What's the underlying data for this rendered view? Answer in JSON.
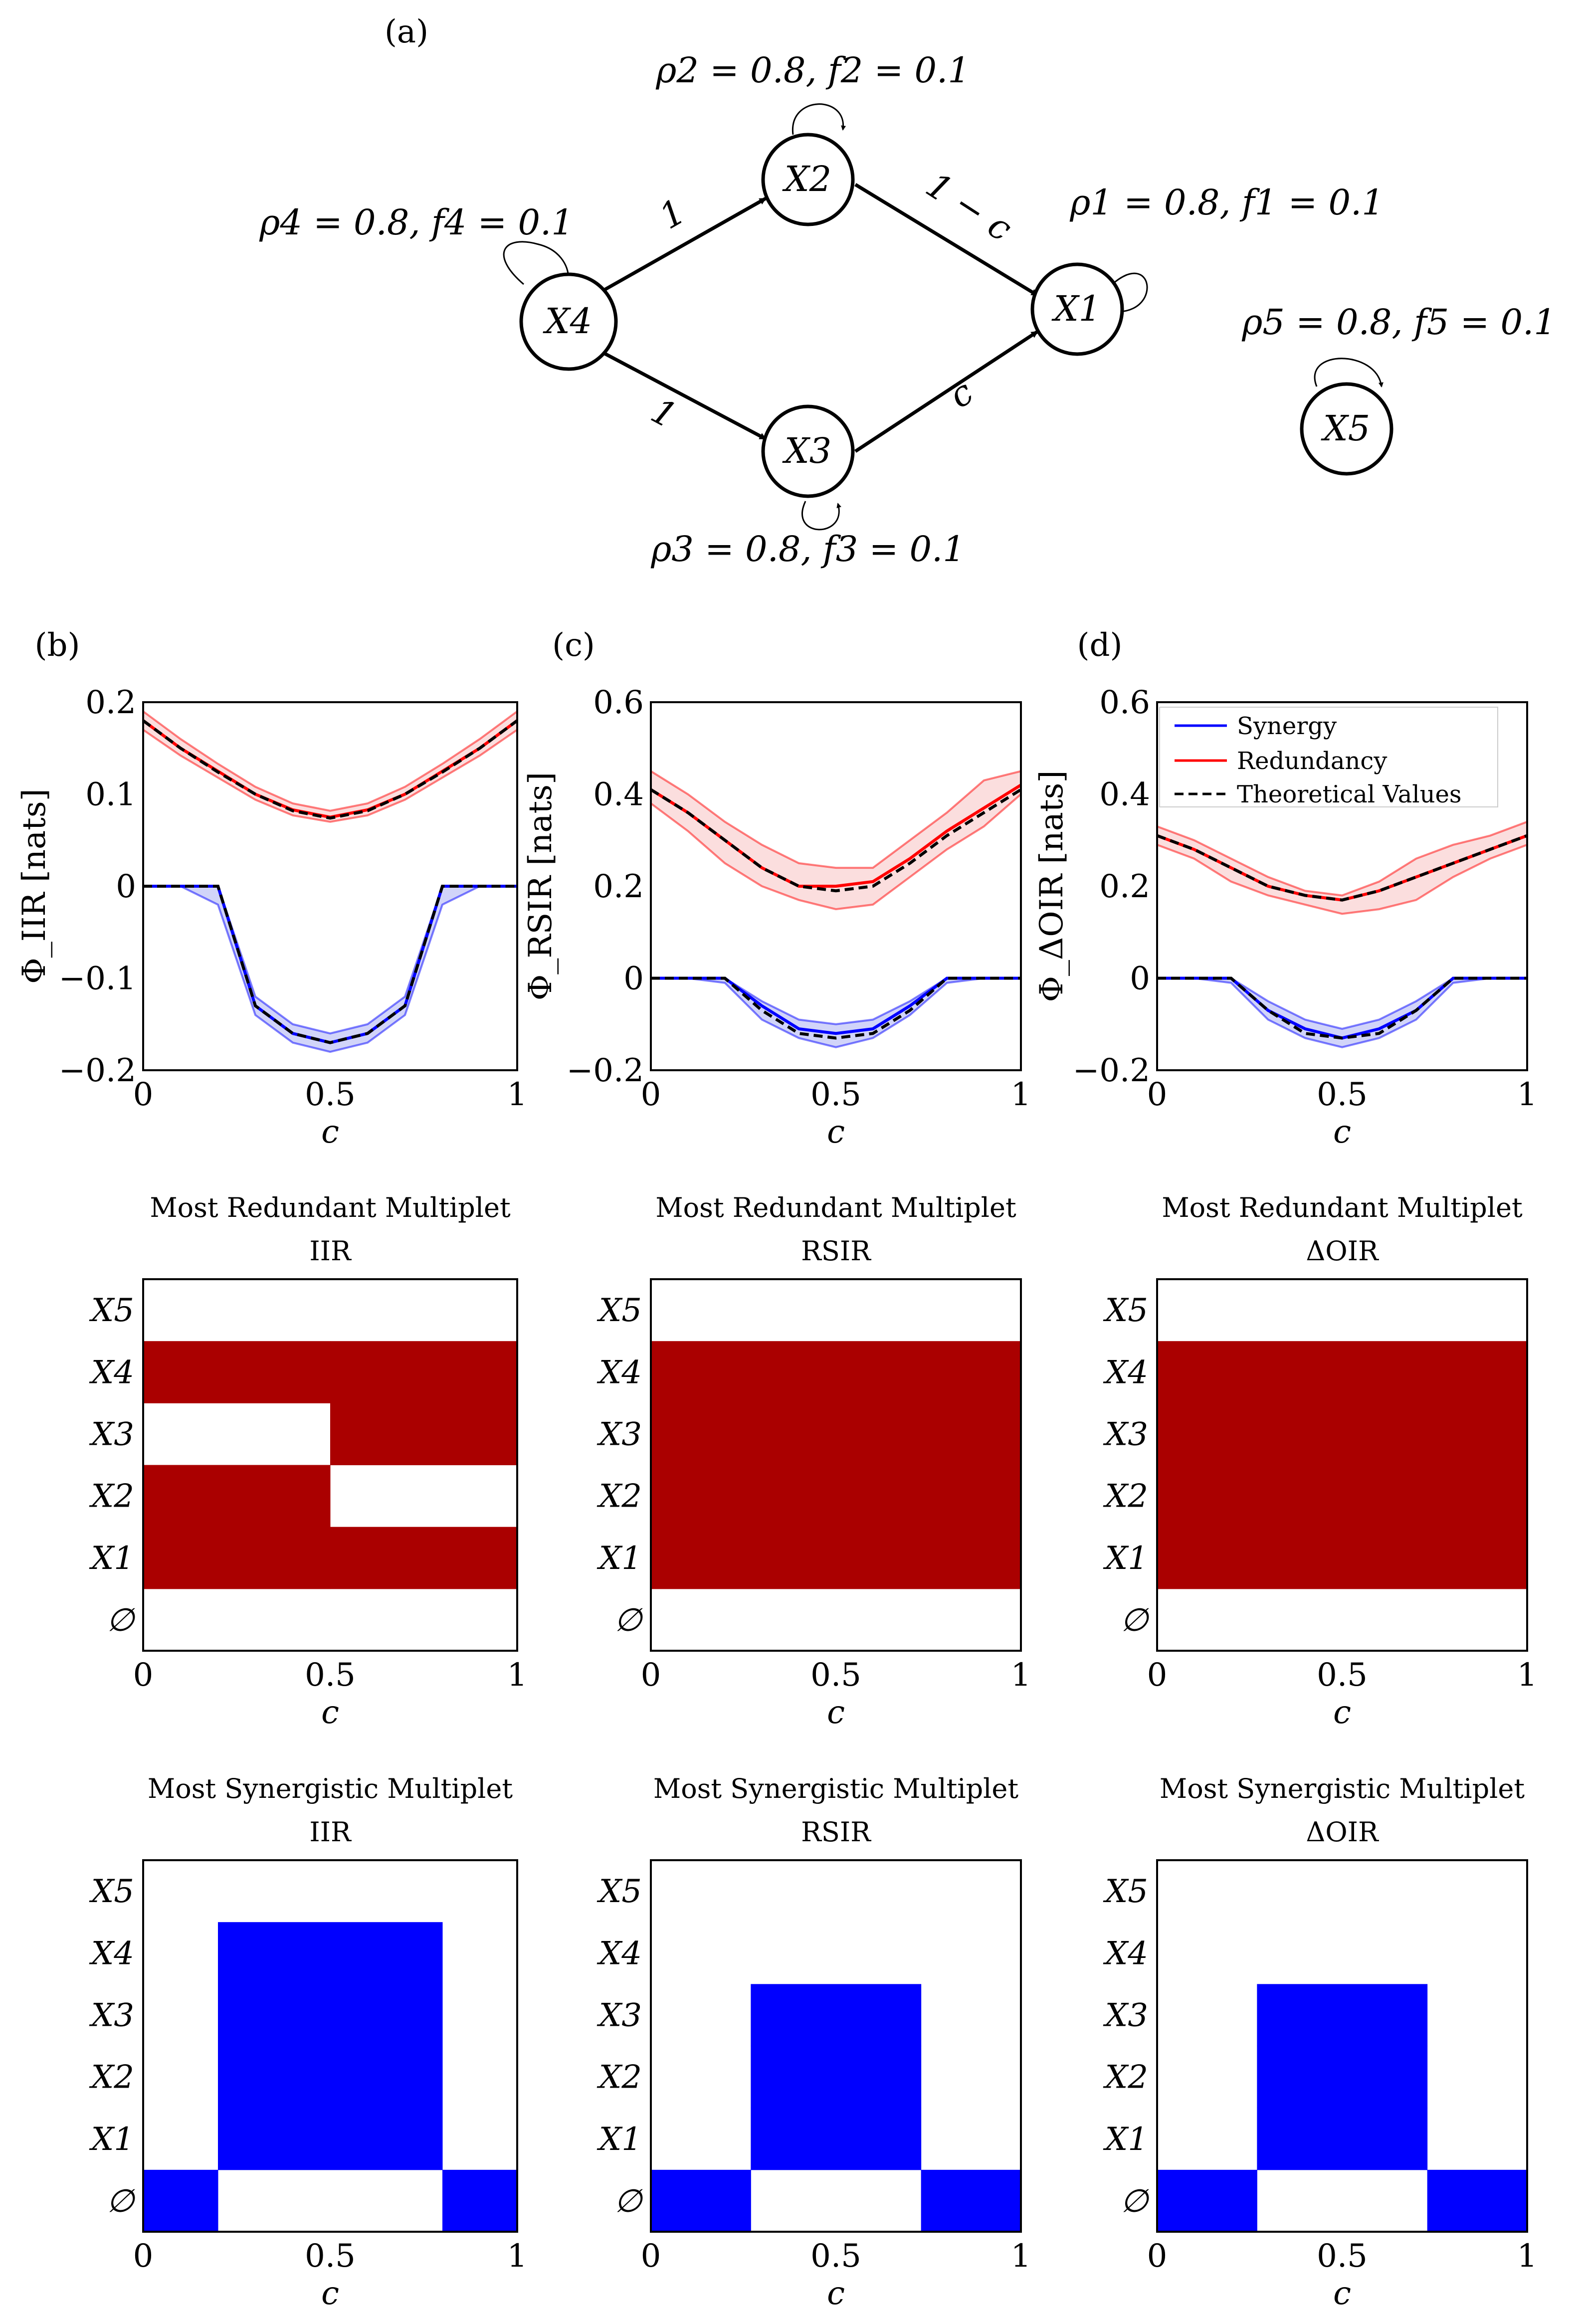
{
  "colors": {
    "synergy": "#0000ff",
    "synergy_band": "#b3b8f5",
    "redundancy": "#ff0000",
    "redundancy_band": "#f8c8c8",
    "redundant_cell": "#aa0000",
    "theory": "#000000"
  },
  "graph": {
    "panel_label": "(a)",
    "nodes": [
      {
        "id": "X1",
        "label": "X1",
        "param": "ρ1 = 0.8, f1 = 0.1"
      },
      {
        "id": "X2",
        "label": "X2",
        "param": "ρ2 = 0.8, f2 = 0.1"
      },
      {
        "id": "X3",
        "label": "X3",
        "param": "ρ3 = 0.8, f3 = 0.1"
      },
      {
        "id": "X4",
        "label": "X4",
        "param": "ρ4 = 0.8, f4 = 0.1"
      },
      {
        "id": "X5",
        "label": "X5",
        "param": "ρ5 = 0.8, f5 = 0.1"
      }
    ],
    "edges": [
      {
        "from": "X4",
        "to": "X2",
        "label": "1"
      },
      {
        "from": "X4",
        "to": "X3",
        "label": "1"
      },
      {
        "from": "X2",
        "to": "X1",
        "label": "1 − c"
      },
      {
        "from": "X3",
        "to": "X1",
        "label": "c"
      }
    ]
  },
  "legend": {
    "synergy": "Synergy",
    "redundancy": "Redundancy",
    "theory": "Theoretical Values"
  },
  "chart_data": [
    {
      "type": "line",
      "panel": "(b)",
      "ylabel": "Φ_IIR [nats]",
      "xlabel": "c",
      "xlim": [
        0,
        1
      ],
      "ylim": [
        -0.2,
        0.2
      ],
      "xticks": [
        "0",
        "0.5",
        "1"
      ],
      "yticks": [
        "0.2",
        "0.1",
        "0",
        "−0.1",
        "−0.2"
      ],
      "x": [
        0,
        0.1,
        0.2,
        0.3,
        0.4,
        0.5,
        0.6,
        0.7,
        0.8,
        0.9,
        1.0
      ],
      "series": [
        {
          "name": "Redundancy",
          "values": [
            0.18,
            0.15,
            0.125,
            0.1,
            0.083,
            0.075,
            0.083,
            0.1,
            0.125,
            0.15,
            0.18
          ],
          "lower": [
            0.17,
            0.142,
            0.118,
            0.094,
            0.077,
            0.07,
            0.077,
            0.094,
            0.118,
            0.142,
            0.17
          ],
          "upper": [
            0.19,
            0.16,
            0.133,
            0.108,
            0.09,
            0.082,
            0.09,
            0.108,
            0.133,
            0.16,
            0.19
          ]
        },
        {
          "name": "Synergy",
          "values": [
            0,
            0,
            0,
            -0.13,
            -0.16,
            -0.17,
            -0.16,
            -0.13,
            0,
            0,
            0
          ],
          "lower": [
            0,
            0,
            -0.02,
            -0.14,
            -0.17,
            -0.18,
            -0.17,
            -0.14,
            -0.02,
            0,
            0
          ],
          "upper": [
            0,
            0,
            0,
            -0.12,
            -0.15,
            -0.16,
            -0.15,
            -0.12,
            0,
            0,
            0
          ]
        },
        {
          "name": "Theoretical Values",
          "values": [
            0.18,
            0.15,
            0.124,
            0.1,
            0.082,
            0.074,
            0.082,
            0.1,
            0.124,
            0.15,
            0.18
          ]
        },
        {
          "name": "Theoretical Synergy",
          "values": [
            0,
            0,
            0,
            -0.13,
            -0.16,
            -0.17,
            -0.16,
            -0.13,
            0,
            0,
            0
          ]
        }
      ]
    },
    {
      "type": "line",
      "panel": "(c)",
      "ylabel": "Φ_RSIR [nats]",
      "xlabel": "c",
      "xlim": [
        0,
        1
      ],
      "ylim": [
        -0.2,
        0.6
      ],
      "xticks": [
        "0",
        "0.5",
        "1"
      ],
      "yticks": [
        "0.6",
        "0.4",
        "0.2",
        "0",
        "−0.2"
      ],
      "x": [
        0,
        0.1,
        0.2,
        0.3,
        0.4,
        0.5,
        0.6,
        0.7,
        0.8,
        0.9,
        1.0
      ],
      "series": [
        {
          "name": "Redundancy",
          "values": [
            0.41,
            0.36,
            0.3,
            0.24,
            0.2,
            0.2,
            0.21,
            0.26,
            0.32,
            0.37,
            0.42
          ],
          "lower": [
            0.38,
            0.32,
            0.25,
            0.2,
            0.17,
            0.15,
            0.16,
            0.22,
            0.28,
            0.33,
            0.4
          ],
          "upper": [
            0.45,
            0.4,
            0.34,
            0.29,
            0.25,
            0.24,
            0.24,
            0.3,
            0.36,
            0.43,
            0.45
          ]
        },
        {
          "name": "Synergy",
          "values": [
            0,
            0,
            0,
            -0.06,
            -0.11,
            -0.12,
            -0.11,
            -0.06,
            0,
            0,
            0
          ],
          "lower": [
            0,
            0,
            -0.01,
            -0.09,
            -0.13,
            -0.15,
            -0.13,
            -0.08,
            -0.01,
            0,
            0
          ],
          "upper": [
            0,
            0,
            0,
            -0.05,
            -0.09,
            -0.1,
            -0.09,
            -0.05,
            0,
            0,
            0
          ]
        },
        {
          "name": "Theoretical Values",
          "values": [
            0.41,
            0.36,
            0.3,
            0.24,
            0.2,
            0.19,
            0.2,
            0.25,
            0.31,
            0.36,
            0.41
          ]
        },
        {
          "name": "Theoretical Synergy",
          "values": [
            0,
            0,
            0,
            -0.07,
            -0.12,
            -0.13,
            -0.12,
            -0.07,
            0,
            0,
            0
          ]
        }
      ]
    },
    {
      "type": "line",
      "panel": "(d)",
      "ylabel": "Φ_ΔOIR [nats]",
      "xlabel": "c",
      "xlim": [
        0,
        1
      ],
      "ylim": [
        -0.2,
        0.6
      ],
      "xticks": [
        "0",
        "0.5",
        "1"
      ],
      "yticks": [
        "0.6",
        "0.4",
        "0.2",
        "0",
        "−0.2"
      ],
      "x": [
        0,
        0.1,
        0.2,
        0.3,
        0.4,
        0.5,
        0.6,
        0.7,
        0.8,
        0.9,
        1.0
      ],
      "series": [
        {
          "name": "Redundancy",
          "values": [
            0.31,
            0.28,
            0.24,
            0.2,
            0.18,
            0.17,
            0.19,
            0.22,
            0.25,
            0.28,
            0.31
          ],
          "lower": [
            0.29,
            0.26,
            0.21,
            0.18,
            0.16,
            0.14,
            0.15,
            0.17,
            0.22,
            0.26,
            0.29
          ],
          "upper": [
            0.33,
            0.3,
            0.26,
            0.22,
            0.19,
            0.18,
            0.21,
            0.26,
            0.29,
            0.31,
            0.34
          ]
        },
        {
          "name": "Synergy",
          "values": [
            0,
            0,
            0,
            -0.07,
            -0.11,
            -0.13,
            -0.11,
            -0.07,
            0,
            0,
            0
          ],
          "lower": [
            0,
            0,
            -0.01,
            -0.09,
            -0.13,
            -0.15,
            -0.13,
            -0.09,
            -0.01,
            0,
            0
          ],
          "upper": [
            0,
            0,
            0,
            -0.05,
            -0.09,
            -0.11,
            -0.09,
            -0.05,
            0,
            0,
            0
          ]
        },
        {
          "name": "Theoretical Values",
          "values": [
            0.31,
            0.28,
            0.24,
            0.2,
            0.18,
            0.17,
            0.19,
            0.22,
            0.25,
            0.28,
            0.31
          ]
        },
        {
          "name": "Theoretical Synergy",
          "values": [
            0,
            0,
            0,
            -0.07,
            -0.12,
            -0.13,
            -0.12,
            -0.07,
            0,
            0,
            0
          ]
        }
      ]
    },
    {
      "type": "heatmap",
      "title": "Most Redundant Multiplet",
      "subtitle": "IIR",
      "xlabel": "c",
      "xlim": [
        0,
        1
      ],
      "xticks": [
        "0",
        "0.5",
        "1"
      ],
      "rows": [
        "∅",
        "X1",
        "X2",
        "X3",
        "X4",
        "X5"
      ],
      "segments": [
        {
          "x0": 0,
          "x1": 0.5,
          "members": [
            "X1",
            "X2",
            "X4"
          ]
        },
        {
          "x0": 0.5,
          "x1": 1,
          "members": [
            "X1",
            "X3",
            "X4"
          ]
        }
      ]
    },
    {
      "type": "heatmap",
      "title": "Most Redundant Multiplet",
      "subtitle": "RSIR",
      "xlabel": "c",
      "xlim": [
        0,
        1
      ],
      "xticks": [
        "0",
        "0.5",
        "1"
      ],
      "rows": [
        "∅",
        "X1",
        "X2",
        "X3",
        "X4",
        "X5"
      ],
      "segments": [
        {
          "x0": 0,
          "x1": 1,
          "members": [
            "X1",
            "X2",
            "X3",
            "X4"
          ]
        }
      ]
    },
    {
      "type": "heatmap",
      "title": "Most Redundant Multiplet",
      "subtitle": "ΔOIR",
      "xlabel": "c",
      "xlim": [
        0,
        1
      ],
      "xticks": [
        "0",
        "0.5",
        "1"
      ],
      "rows": [
        "∅",
        "X1",
        "X2",
        "X3",
        "X4",
        "X5"
      ],
      "segments": [
        {
          "x0": 0,
          "x1": 1,
          "members": [
            "X1",
            "X2",
            "X3",
            "X4"
          ]
        }
      ]
    },
    {
      "type": "heatmap",
      "title": "Most Synergistic Multiplet",
      "subtitle": "IIR",
      "xlabel": "c",
      "xlim": [
        0,
        1
      ],
      "xticks": [
        "0",
        "0.5",
        "1"
      ],
      "rows": [
        "∅",
        "X1",
        "X2",
        "X3",
        "X4",
        "X5"
      ],
      "segments": [
        {
          "x0": 0,
          "x1": 0.2,
          "members": [
            "∅"
          ]
        },
        {
          "x0": 0.2,
          "x1": 0.8,
          "members": [
            "X1",
            "X2",
            "X3",
            "X4"
          ]
        },
        {
          "x0": 0.8,
          "x1": 1,
          "members": [
            "∅"
          ]
        }
      ]
    },
    {
      "type": "heatmap",
      "title": "Most Synergistic Multiplet",
      "subtitle": "RSIR",
      "xlabel": "c",
      "xlim": [
        0,
        1
      ],
      "xticks": [
        "0",
        "0.5",
        "1"
      ],
      "rows": [
        "∅",
        "X1",
        "X2",
        "X3",
        "X4",
        "X5"
      ],
      "segments": [
        {
          "x0": 0,
          "x1": 0.27,
          "members": [
            "∅"
          ]
        },
        {
          "x0": 0.27,
          "x1": 0.73,
          "members": [
            "X1",
            "X2",
            "X3"
          ]
        },
        {
          "x0": 0.73,
          "x1": 1,
          "members": [
            "∅"
          ]
        }
      ]
    },
    {
      "type": "heatmap",
      "title": "Most Synergistic Multiplet",
      "subtitle": "ΔOIR",
      "xlabel": "c",
      "xlim": [
        0,
        1
      ],
      "xticks": [
        "0",
        "0.5",
        "1"
      ],
      "rows": [
        "∅",
        "X1",
        "X2",
        "X3",
        "X4",
        "X5"
      ],
      "segments": [
        {
          "x0": 0,
          "x1": 0.27,
          "members": [
            "∅"
          ]
        },
        {
          "x0": 0.27,
          "x1": 0.73,
          "members": [
            "X1",
            "X2",
            "X3"
          ]
        },
        {
          "x0": 0.73,
          "x1": 1,
          "members": [
            "∅"
          ]
        }
      ]
    }
  ]
}
